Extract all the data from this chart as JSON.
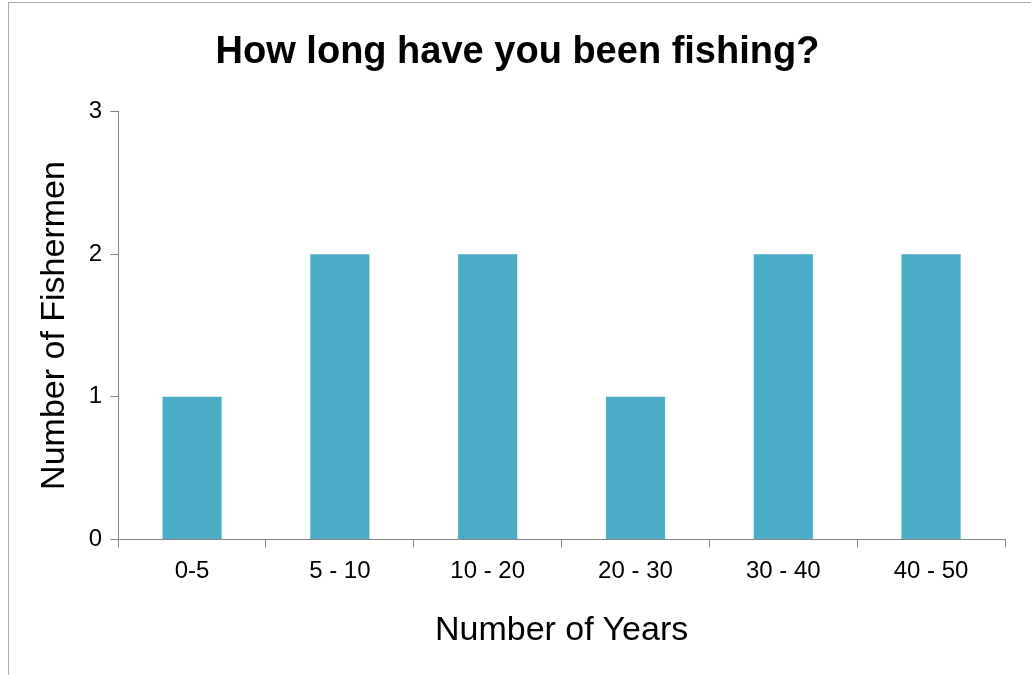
{
  "chart_data": {
    "type": "bar",
    "title": "How long have you been fishing?",
    "xlabel": "Number of Years",
    "ylabel": "Number of Fishermen",
    "categories": [
      "0-5",
      "5 - 10",
      "10 - 20",
      "20 - 30",
      "30 - 40",
      "40 - 50"
    ],
    "values": [
      1,
      2,
      2,
      1,
      2,
      2
    ],
    "color": "#4bacc6",
    "ylim": [
      0,
      3
    ],
    "yticks": [
      0,
      1,
      2,
      3
    ],
    "grid": false,
    "legend": false
  }
}
